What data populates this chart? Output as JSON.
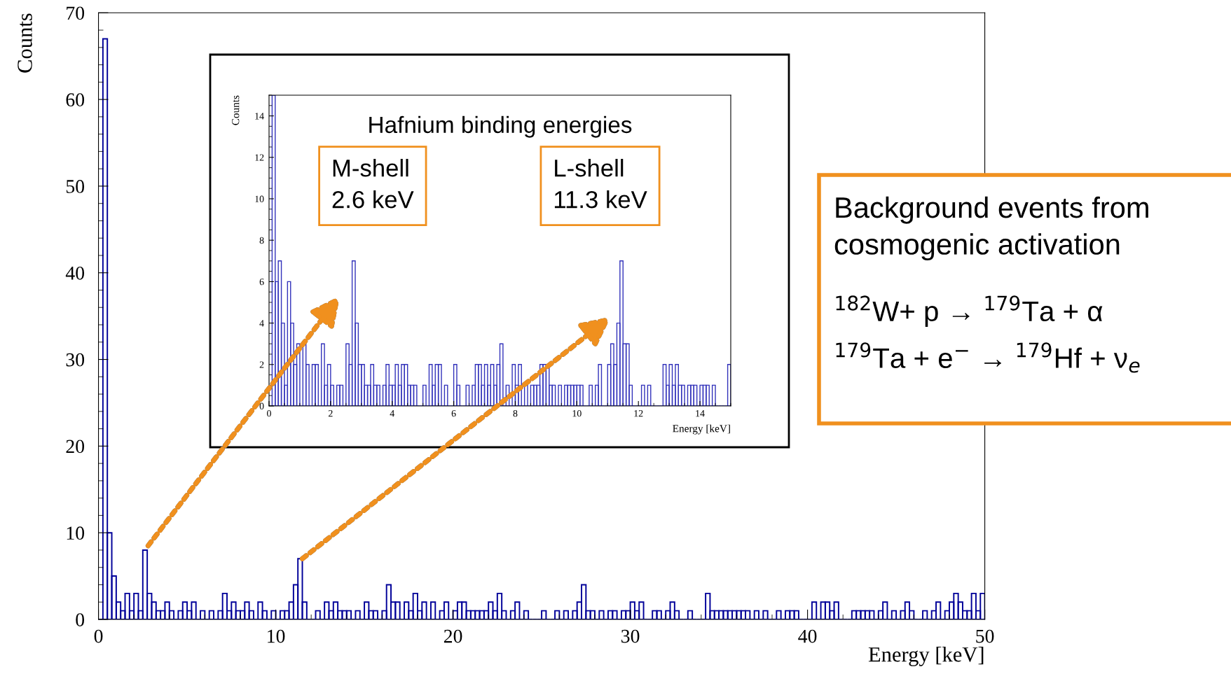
{
  "chart_data": [
    {
      "type": "histogram",
      "xlabel": "Energy [keV]",
      "ylabel": "Counts",
      "color": "#000099",
      "bins": [
        0,
        0.25,
        0.5,
        0.75,
        1,
        1.25,
        1.5,
        1.75,
        2,
        2.25,
        2.5,
        2.75,
        3,
        3.25,
        3.5,
        3.75,
        4,
        4.25,
        4.5,
        4.75,
        5,
        5.25,
        5.5,
        5.75,
        6,
        6.25,
        6.5,
        6.75,
        7,
        7.25,
        7.5,
        7.75,
        8,
        8.25,
        8.5,
        8.75,
        9,
        9.25,
        9.5,
        9.75,
        10,
        10.25,
        10.5,
        10.75,
        11,
        11.25,
        11.5,
        11.75,
        12,
        12.25,
        12.5,
        12.75,
        13,
        13.25,
        13.5,
        13.75,
        14,
        14.25,
        14.5,
        14.75,
        15,
        15.25,
        15.5,
        15.75,
        16,
        16.25,
        16.5,
        16.75,
        17,
        17.25,
        17.5,
        17.75,
        18,
        18.25,
        18.5,
        18.75,
        19,
        19.25,
        19.5,
        19.75,
        20,
        20.25,
        20.5,
        20.75,
        21,
        21.25,
        21.5,
        21.75,
        22,
        22.25,
        22.5,
        22.75,
        23,
        23.25,
        23.5,
        23.75,
        24,
        24.25,
        24.5,
        24.75,
        25,
        25.25,
        25.5,
        25.75,
        26,
        26.25,
        26.5,
        26.75,
        27,
        27.25,
        27.5,
        27.75,
        28,
        28.25,
        28.5,
        28.75,
        29,
        29.25,
        29.5,
        29.75,
        30,
        30.25,
        30.5,
        30.75,
        31,
        31.25,
        31.5,
        31.75,
        32,
        32.25,
        32.5,
        32.75,
        33,
        33.25,
        33.5,
        33.75,
        34,
        34.25,
        34.5,
        34.75,
        35,
        35.25,
        35.5,
        35.75,
        36,
        36.25,
        36.5,
        36.75,
        37,
        37.25,
        37.5,
        37.75,
        38,
        38.25,
        38.5,
        38.75,
        39,
        39.25,
        39.5,
        39.75,
        40,
        40.25,
        40.5,
        40.75,
        41,
        41.25,
        41.5,
        41.75,
        42,
        42.25,
        42.5,
        42.75,
        43,
        43.25,
        43.5,
        43.75,
        44,
        44.25,
        44.5,
        44.75,
        45,
        45.25,
        45.5,
        45.75,
        46,
        46.25,
        46.5,
        46.75,
        47,
        47.25,
        47.5,
        47.75,
        48,
        48.25,
        48.5,
        48.75,
        49,
        49.25,
        49.5,
        49.75,
        50
      ],
      "values": [
        0,
        67,
        10,
        5,
        2,
        1,
        3,
        1,
        3,
        1,
        8,
        3,
        2,
        1,
        1,
        2,
        1,
        0,
        1,
        2,
        1,
        2,
        0,
        1,
        0,
        1,
        0,
        1,
        3,
        1,
        2,
        1,
        1,
        2,
        1,
        0,
        2,
        1,
        0,
        1,
        0,
        1,
        1,
        2,
        4,
        7,
        2,
        0,
        0,
        1,
        0,
        2,
        1,
        2,
        1,
        1,
        1,
        0,
        1,
        0,
        2,
        1,
        1,
        0,
        1,
        4,
        2,
        2,
        0,
        2,
        1,
        3,
        1,
        2,
        0,
        2,
        0,
        1,
        2,
        0,
        1,
        2,
        2,
        1,
        1,
        1,
        1,
        1,
        2,
        1,
        3,
        1,
        0,
        1,
        2,
        0,
        1,
        0,
        0,
        0,
        1,
        0,
        0,
        1,
        0,
        1,
        0,
        1,
        2,
        4,
        1,
        1,
        0,
        1,
        0,
        1,
        1,
        0,
        1,
        1,
        2,
        1,
        2,
        0,
        0,
        1,
        1,
        0,
        1,
        2,
        1,
        0,
        0,
        1,
        0,
        0,
        0,
        3,
        1,
        1,
        1,
        1,
        1,
        1,
        1,
        1,
        1,
        0,
        1,
        0,
        1,
        0,
        0,
        1,
        0,
        1,
        1,
        1,
        0,
        0,
        0,
        2,
        0,
        2,
        2,
        1,
        2,
        0,
        0,
        0,
        1,
        1,
        1,
        1,
        1,
        0,
        1,
        2,
        0,
        1,
        0,
        1,
        2,
        1,
        0,
        0,
        1,
        0,
        1,
        2,
        0,
        1,
        2,
        3,
        2,
        1,
        1,
        3,
        1,
        3
      ],
      "xlim": [
        0,
        50
      ],
      "xticks": [
        0,
        10,
        20,
        30,
        40,
        50
      ],
      "ylim": [
        0,
        70
      ],
      "yticks": [
        0,
        10,
        20,
        30,
        40,
        50,
        60,
        70
      ]
    },
    {
      "type": "histogram",
      "title": "Hafnium binding energies",
      "xlabel": "Energy [keV]",
      "ylabel": "Counts",
      "color": "#3333bb",
      "bins": [
        0,
        0.1,
        0.2,
        0.3,
        0.4,
        0.5,
        0.6,
        0.7,
        0.8,
        0.9,
        1,
        1.1,
        1.2,
        1.3,
        1.4,
        1.5,
        1.6,
        1.7,
        1.8,
        1.9,
        2,
        2.1,
        2.2,
        2.3,
        2.4,
        2.5,
        2.6,
        2.7,
        2.8,
        2.9,
        3,
        3.1,
        3.2,
        3.3,
        3.4,
        3.5,
        3.6,
        3.7,
        3.8,
        3.9,
        4,
        4.1,
        4.2,
        4.3,
        4.4,
        4.5,
        4.6,
        4.7,
        4.8,
        4.9,
        5,
        5.1,
        5.2,
        5.3,
        5.4,
        5.5,
        5.6,
        5.7,
        5.8,
        5.9,
        6,
        6.1,
        6.2,
        6.3,
        6.4,
        6.5,
        6.6,
        6.7,
        6.8,
        6.9,
        7,
        7.1,
        7.2,
        7.3,
        7.4,
        7.5,
        7.6,
        7.7,
        7.8,
        7.9,
        8,
        8.1,
        8.2,
        8.3,
        8.4,
        8.5,
        8.6,
        8.7,
        8.8,
        8.9,
        9,
        9.1,
        9.2,
        9.3,
        9.4,
        9.5,
        9.6,
        9.7,
        9.8,
        9.9,
        10,
        10.1,
        10.2,
        10.3,
        10.4,
        10.5,
        10.6,
        10.7,
        10.8,
        10.9,
        11,
        11.1,
        11.2,
        11.3,
        11.4,
        11.5,
        11.6,
        11.7,
        11.8,
        11.9,
        12,
        12.1,
        12.2,
        12.3,
        12.4,
        12.5,
        12.6,
        12.7,
        12.8,
        12.9,
        13,
        13.1,
        13.2,
        13.3,
        13.4,
        13.5,
        13.6,
        13.7,
        13.8,
        13.9,
        14,
        14.1,
        14.2,
        14.3,
        14.4,
        14.5,
        14.6,
        14.7,
        14.8,
        14.9,
        15
      ],
      "values": [
        0,
        15,
        6,
        7,
        4,
        1,
        6,
        4,
        2,
        3,
        0,
        3,
        2,
        0,
        2,
        2,
        0,
        3,
        1,
        2,
        1,
        0,
        1,
        1,
        0,
        3,
        2,
        7,
        4,
        2,
        2,
        1,
        1,
        2,
        1,
        1,
        0,
        1,
        2,
        1,
        1,
        2,
        1,
        2,
        2,
        1,
        1,
        1,
        0,
        0,
        1,
        0,
        2,
        1,
        2,
        2,
        0,
        1,
        0,
        0,
        2,
        1,
        0,
        0,
        1,
        0,
        1,
        2,
        2,
        1,
        2,
        1,
        2,
        1,
        2,
        3,
        0,
        1,
        0,
        2,
        1,
        2,
        0,
        1,
        0,
        1,
        1,
        1,
        2,
        2,
        2,
        1,
        1,
        0,
        1,
        0,
        1,
        1,
        1,
        1,
        1,
        1,
        0,
        0,
        1,
        0,
        1,
        2,
        0,
        0,
        2,
        3,
        2,
        4,
        7,
        3,
        3,
        1,
        0,
        0,
        0,
        1,
        0,
        1,
        0,
        0,
        0,
        0,
        2,
        1,
        2,
        1,
        2,
        1,
        1,
        0,
        1,
        1,
        1,
        0,
        1,
        1,
        1,
        0,
        1,
        0,
        0,
        0,
        0,
        2
      ],
      "annotations": [
        "M-shell\n2.6 keV",
        "L-shell\n11.3 keV"
      ],
      "xlim": [
        0,
        15
      ],
      "xticks": [
        0,
        2,
        4,
        6,
        8,
        10,
        12,
        14
      ],
      "ylim": [
        0,
        15
      ],
      "yticks": [
        0,
        2,
        4,
        6,
        8,
        10,
        12,
        14
      ]
    },
    {
      "type": "other",
      "annotations": [
        "Background events from\ncosmogenic activation",
        "$^{182}$W+ p → $^{179}$Ta + α",
        "$^{179}$Ta + e$^{−}$ → $^{179}$Hf + ν$_{e}$"
      ]
    }
  ]
}
